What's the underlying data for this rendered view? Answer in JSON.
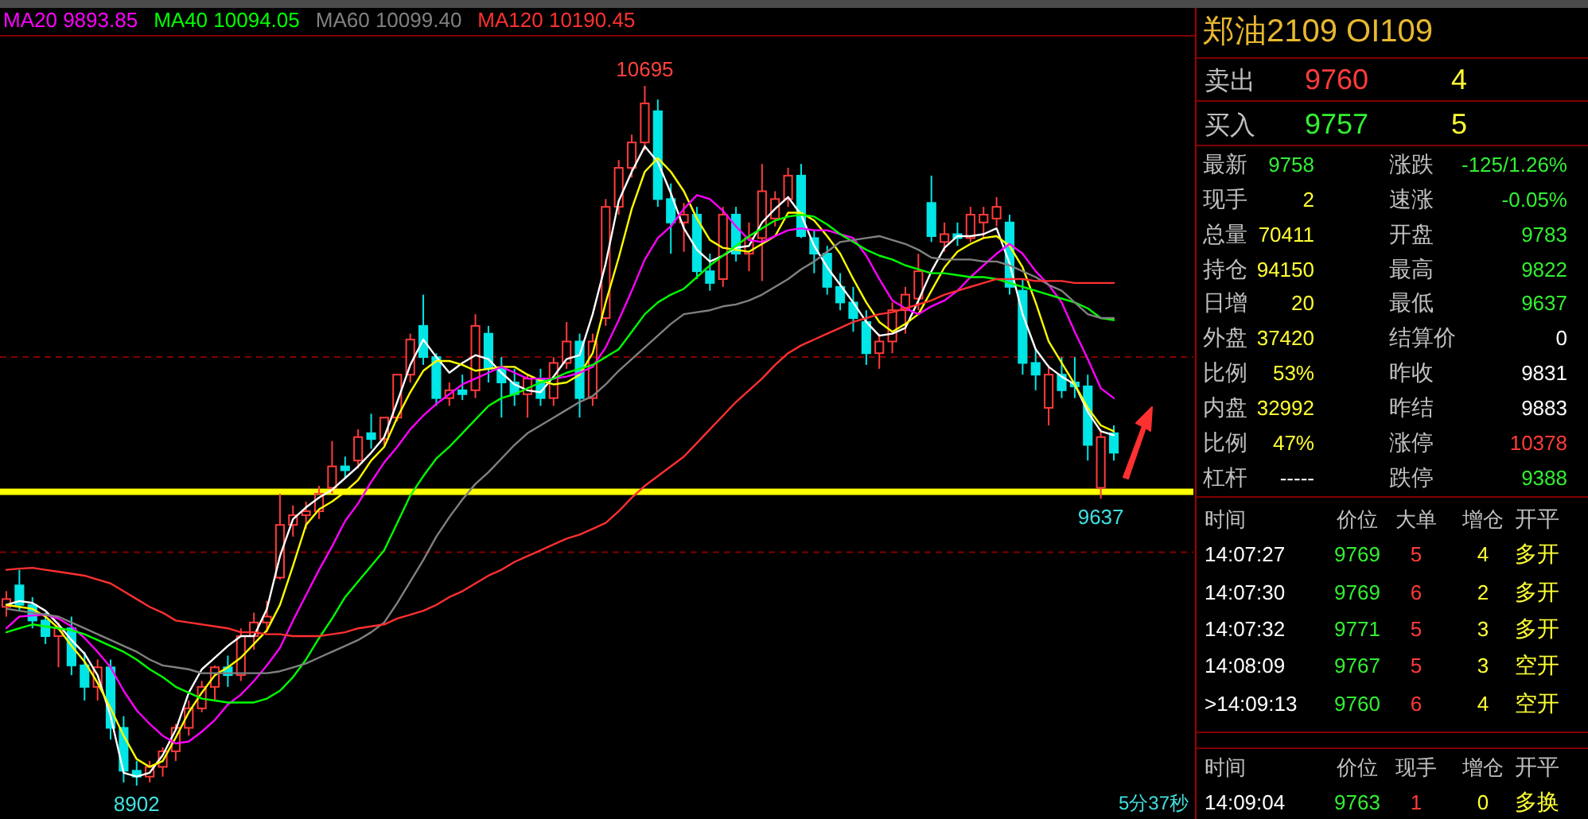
{
  "chart_data": [
    {
      "type": "candlestick",
      "legend": "top left",
      "categories": [
        null,
        null,
        null,
        null,
        null,
        null,
        null,
        null,
        null,
        null,
        null,
        null,
        null,
        null,
        null,
        null,
        null,
        null,
        null,
        null,
        null,
        null,
        null,
        null,
        null,
        null,
        null,
        null,
        null,
        null,
        null,
        null,
        null,
        null,
        null,
        null,
        null,
        null,
        null,
        null,
        null,
        null,
        null,
        null,
        null,
        null,
        null,
        null,
        null,
        null,
        null,
        null,
        null,
        null,
        null,
        null,
        null,
        null,
        null,
        null,
        null,
        null,
        null,
        null,
        null,
        null,
        null,
        null,
        null,
        null,
        null,
        null,
        null,
        null,
        null,
        null,
        null,
        null,
        null,
        null,
        null,
        null,
        null,
        null,
        null,
        null
      ],
      "ohlc": [
        [
          9360,
          9400,
          9335,
          9380
        ],
        [
          9415,
          9455,
          9350,
          9365
        ],
        [
          9365,
          9385,
          9305,
          9325
        ],
        [
          9325,
          9345,
          9265,
          9285
        ],
        [
          9285,
          9320,
          9205,
          9305
        ],
        [
          9305,
          9335,
          9185,
          9210
        ],
        [
          9210,
          9245,
          9120,
          9155
        ],
        [
          9155,
          9225,
          9120,
          9205
        ],
        [
          9205,
          9225,
          9020,
          9050
        ],
        [
          9050,
          9080,
          8910,
          8940
        ],
        [
          8940,
          8965,
          8902,
          8925
        ],
        [
          8925,
          8965,
          8910,
          8950
        ],
        [
          8950,
          9000,
          8925,
          8990
        ],
        [
          8990,
          9060,
          8965,
          9050
        ],
        [
          9050,
          9120,
          9030,
          9100
        ],
        [
          9100,
          9170,
          9090,
          9155
        ],
        [
          9155,
          9210,
          9120,
          9205
        ],
        [
          9205,
          9235,
          9155,
          9185
        ],
        [
          9185,
          9305,
          9170,
          9285
        ],
        [
          9285,
          9345,
          9250,
          9320
        ],
        [
          9320,
          9375,
          9295,
          9335
        ],
        [
          9435,
          9650,
          9430,
          9570
        ],
        [
          9570,
          9620,
          9540,
          9595
        ],
        [
          9595,
          9630,
          9560,
          9605
        ],
        [
          9605,
          9670,
          9585,
          9650
        ],
        [
          9665,
          9785,
          9650,
          9720
        ],
        [
          9720,
          9745,
          9690,
          9710
        ],
        [
          9735,
          9815,
          9715,
          9795
        ],
        [
          9805,
          9855,
          9765,
          9790
        ],
        [
          9790,
          9845,
          9775,
          9845
        ],
        [
          9845,
          9955,
          9835,
          9955
        ],
        [
          9955,
          10060,
          9935,
          10045
        ],
        [
          10080,
          10160,
          9980,
          10000
        ],
        [
          10000,
          10010,
          9875,
          9895
        ],
        [
          9895,
          9935,
          9875,
          9915
        ],
        [
          9915,
          9955,
          9890,
          9905
        ],
        [
          9915,
          10110,
          9895,
          10080
        ],
        [
          10060,
          10080,
          9935,
          9970
        ],
        [
          9970,
          10000,
          9845,
          9935
        ],
        [
          9935,
          9970,
          9875,
          9905
        ],
        [
          9905,
          9955,
          9845,
          9945
        ],
        [
          9945,
          9970,
          9875,
          9895
        ],
        [
          9895,
          10000,
          9875,
          9985
        ],
        [
          9985,
          10090,
          9970,
          10040
        ],
        [
          10040,
          10060,
          9845,
          9895
        ],
        [
          9895,
          10060,
          9875,
          10040
        ],
        [
          10100,
          10405,
          10080,
          10385
        ],
        [
          10385,
          10505,
          10365,
          10485
        ],
        [
          10485,
          10570,
          10460,
          10550
        ],
        [
          10550,
          10695,
          10530,
          10650
        ],
        [
          10630,
          10660,
          10385,
          10405
        ],
        [
          10405,
          10445,
          10265,
          10345
        ],
        [
          10345,
          10395,
          10270,
          10365
        ],
        [
          10365,
          10385,
          10200,
          10220
        ],
        [
          10220,
          10265,
          10170,
          10190
        ],
        [
          10200,
          10385,
          10180,
          10365
        ],
        [
          10365,
          10385,
          10245,
          10265
        ],
        [
          10265,
          10345,
          10220,
          10305
        ],
        [
          10305,
          10495,
          10195,
          10425
        ],
        [
          10355,
          10425,
          10335,
          10405
        ],
        [
          10405,
          10485,
          10385,
          10465
        ],
        [
          10465,
          10495,
          10305,
          10310
        ],
        [
          10305,
          10325,
          10215,
          10265
        ],
        [
          10265,
          10285,
          10160,
          10180
        ],
        [
          10180,
          10215,
          10120,
          10140
        ],
        [
          10140,
          10180,
          10065,
          10100
        ],
        [
          10090,
          10120,
          9980,
          10010
        ],
        [
          10010,
          10060,
          9970,
          10040
        ],
        [
          10040,
          10140,
          10010,
          10120
        ],
        [
          10120,
          10180,
          10060,
          10160
        ],
        [
          10150,
          10265,
          10120,
          10220
        ],
        [
          10395,
          10465,
          10295,
          10310
        ],
        [
          10295,
          10345,
          10270,
          10315
        ],
        [
          10315,
          10345,
          10285,
          10305
        ],
        [
          10305,
          10385,
          10295,
          10365
        ],
        [
          10345,
          10385,
          10305,
          10365
        ],
        [
          10355,
          10410,
          10335,
          10385
        ],
        [
          10345,
          10365,
          10160,
          10180
        ],
        [
          10170,
          10200,
          9955,
          9985
        ],
        [
          9985,
          10020,
          9915,
          9955
        ],
        [
          9870,
          9980,
          9825,
          9955
        ],
        [
          9955,
          10000,
          9895,
          9915
        ],
        [
          9935,
          10000,
          9895,
          9925
        ],
        [
          9925,
          9955,
          9735,
          9775
        ],
        [
          9665,
          9815,
          9637,
          9795
        ],
        [
          9805,
          9825,
          9735,
          9755
        ]
      ],
      "series": [
        {
          "type": "line",
          "color": "#ffffff",
          "values": [
            9365,
            9375,
            9370,
            9350,
            9315,
            9275,
            9240,
            9185,
            9080,
            8935,
            8925,
            8935,
            8980,
            9045,
            9140,
            9200,
            9230,
            9260,
            9285,
            9285,
            9355,
            9490,
            9585,
            9615,
            9640,
            9660,
            9690,
            9720,
            9755,
            9795,
            9885,
            9980,
            10045,
            10000,
            9960,
            9985,
            10005,
            9995,
            9960,
            9930,
            9915,
            9910,
            9950,
            9995,
            10005,
            10110,
            10240,
            10400,
            10475,
            10540,
            10500,
            10420,
            10330,
            10275,
            10245,
            10260,
            10280,
            10285,
            10345,
            10380,
            10410,
            10365,
            10285,
            10230,
            10185,
            10140,
            10090,
            10055,
            10060,
            10075,
            10145,
            10220,
            10280,
            10310,
            10310,
            10315,
            10330,
            10240,
            10110,
            10020,
            9975,
            9950,
            9930,
            9860,
            9810,
            9800
          ]
        },
        {
          "type": "line",
          "color": "#ffff00",
          "values": [
            9365,
            9360,
            9355,
            9335,
            9305,
            9260,
            9220,
            9165,
            9100,
            9030,
            8970,
            8950,
            8965,
            9025,
            9090,
            9140,
            9185,
            9205,
            9230,
            9265,
            9300,
            9365,
            9465,
            9570,
            9610,
            9630,
            9655,
            9685,
            9735,
            9770,
            9845,
            9910,
            9965,
            9990,
            9990,
            9980,
            9965,
            9970,
            9975,
            9975,
            9955,
            9940,
            9930,
            9935,
            9955,
            10010,
            10140,
            10255,
            10380,
            10475,
            10510,
            10475,
            10425,
            10355,
            10300,
            10280,
            10275,
            10270,
            10290,
            10310,
            10370,
            10370,
            10350,
            10310,
            10265,
            10200,
            10140,
            10090,
            10065,
            10085,
            10110,
            10170,
            10230,
            10270,
            10290,
            10305,
            10310,
            10285,
            10230,
            10140,
            10040,
            9985,
            9930,
            9870,
            9825,
            9810
          ]
        },
        {
          "type": "line",
          "name": "MA20 9893.85",
          "color": "#ff00ff",
          "values": [
            9305,
            9335,
            9338,
            9340,
            9330,
            9310,
            9280,
            9245,
            9205,
            9145,
            9095,
            9060,
            9030,
            9010,
            9015,
            9040,
            9070,
            9110,
            9135,
            9170,
            9210,
            9255,
            9325,
            9390,
            9455,
            9515,
            9580,
            9625,
            9680,
            9730,
            9770,
            9815,
            9850,
            9880,
            9905,
            9930,
            9945,
            9960,
            9975,
            9960,
            9945,
            9945,
            9945,
            9950,
            9960,
            9975,
            10025,
            10095,
            10170,
            10250,
            10305,
            10335,
            10380,
            10415,
            10405,
            10375,
            10335,
            10300,
            10295,
            10310,
            10325,
            10330,
            10325,
            10325,
            10315,
            10305,
            10260,
            10200,
            10145,
            10125,
            10110,
            10130,
            10145,
            10170,
            10205,
            10235,
            10265,
            10290,
            10265,
            10220,
            10185,
            10140,
            10065,
            9995,
            9920,
            9895
          ]
        },
        {
          "type": "line",
          "name": "MA40 10094.05",
          "color": "#00ff00",
          "values": [
            9295,
            9305,
            9315,
            9310,
            9305,
            9300,
            9290,
            9275,
            9260,
            9245,
            9225,
            9200,
            9180,
            9155,
            9140,
            9125,
            9120,
            9115,
            9115,
            9115,
            9125,
            9145,
            9180,
            9225,
            9280,
            9330,
            9385,
            9425,
            9465,
            9505,
            9575,
            9645,
            9695,
            9740,
            9770,
            9805,
            9840,
            9875,
            9895,
            9905,
            9920,
            9935,
            9945,
            9960,
            9970,
            9980,
            10000,
            10020,
            10065,
            10110,
            10140,
            10160,
            10175,
            10205,
            10235,
            10260,
            10285,
            10310,
            10330,
            10350,
            10360,
            10365,
            10360,
            10340,
            10315,
            10295,
            10275,
            10260,
            10250,
            10235,
            10225,
            10215,
            10215,
            10210,
            10205,
            10205,
            10200,
            10190,
            10180,
            10170,
            10160,
            10150,
            10140,
            10125,
            10100,
            10095
          ]
        },
        {
          "type": "line",
          "name": "MA60 10099.40",
          "color": "#808080",
          "values": [
            9355,
            9350,
            9345,
            9340,
            9335,
            9320,
            9305,
            9290,
            9275,
            9260,
            9245,
            9225,
            9210,
            9205,
            9200,
            9190,
            9190,
            9190,
            9190,
            9190,
            9190,
            9195,
            9205,
            9215,
            9230,
            9245,
            9260,
            9275,
            9295,
            9320,
            9370,
            9425,
            9480,
            9540,
            9590,
            9635,
            9675,
            9705,
            9740,
            9775,
            9805,
            9825,
            9845,
            9865,
            9885,
            9900,
            9930,
            9965,
            9995,
            10025,
            10055,
            10085,
            10110,
            10115,
            10120,
            10130,
            10135,
            10145,
            10160,
            10180,
            10200,
            10225,
            10245,
            10270,
            10295,
            10300,
            10305,
            10310,
            10300,
            10290,
            10275,
            10255,
            10250,
            10250,
            10250,
            10245,
            10245,
            10235,
            10220,
            10205,
            10185,
            10170,
            10140,
            10110,
            10100,
            10100
          ]
        },
        {
          "type": "line",
          "name": "MA120 10190.45",
          "color": "#ff3030",
          "values": [
            9455,
            9458,
            9460,
            9455,
            9450,
            9445,
            9440,
            9430,
            9420,
            9400,
            9380,
            9360,
            9345,
            9325,
            9320,
            9315,
            9310,
            9305,
            9295,
            9295,
            9290,
            9290,
            9285,
            9285,
            9285,
            9290,
            9295,
            9305,
            9310,
            9315,
            9330,
            9340,
            9350,
            9365,
            9385,
            9400,
            9420,
            9440,
            9455,
            9475,
            9490,
            9505,
            9520,
            9535,
            9545,
            9560,
            9575,
            9605,
            9640,
            9670,
            9695,
            9720,
            9745,
            9780,
            9815,
            9850,
            9885,
            9915,
            9945,
            9980,
            10010,
            10030,
            10045,
            10060,
            10075,
            10090,
            10100,
            10110,
            10115,
            10125,
            10135,
            10145,
            10160,
            10170,
            10180,
            10190,
            10200,
            10200,
            10200,
            10195,
            10195,
            10195,
            10190,
            10190,
            10190,
            10190
          ]
        }
      ],
      "ref_lines": [
        {
          "axis": "y",
          "value": 10000,
          "color": "#800000",
          "line_style": "dashed"
        },
        {
          "axis": "y",
          "value": 9500,
          "color": "#800000",
          "line_style": "dashed"
        },
        {
          "axis": "y",
          "value": 9655,
          "color": "#ffff00",
          "line_style": "solid"
        }
      ],
      "annotations": [
        {
          "text": "10695",
          "y": 10695
        },
        {
          "text": "8902",
          "y": 8902
        },
        {
          "text": "9637",
          "y": 9637
        },
        "5分37秒"
      ]
    },
    {
      "type": "other",
      "title": "郑油2109  OI109",
      "annotations": [
        "卖出",
        "9760",
        "4",
        "买入",
        "9757",
        "5",
        "最新",
        "9758",
        "涨跌",
        "-125/1.26%",
        "现手",
        "2",
        "速涨",
        "-0.05%",
        "总量",
        "70411",
        "开盘",
        "9783",
        "持仓",
        "94150",
        "最高",
        "9822",
        "日增",
        "20",
        "最低",
        "9637",
        "外盘",
        "37420",
        "结算价",
        "0",
        "比例",
        "53%",
        "昨收",
        "9831",
        "内盘",
        "32992",
        "昨结",
        "9883",
        "比例",
        "47%",
        "涨停",
        "10378",
        "杠杆",
        "-----",
        "跌停",
        "9388",
        "时间",
        "价位",
        "大单",
        "增仓",
        "开平",
        "14:07:27",
        "9769",
        "5",
        "4",
        "多开",
        "14:07:30",
        "9769",
        "6",
        "2",
        "多开",
        "14:07:32",
        "9771",
        "5",
        "3",
        "多开",
        "14:08:09",
        "9767",
        "5",
        "3",
        "空开",
        ">14:09:13",
        "9760",
        "6",
        "4",
        "空开",
        "时间",
        "价位",
        "现手",
        "增仓",
        "开平",
        "14:09:04",
        "9763",
        "1",
        "0",
        "多换"
      ]
    }
  ]
}
